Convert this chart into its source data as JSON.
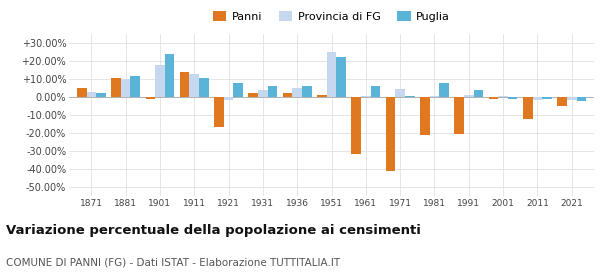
{
  "years": [
    1871,
    1881,
    1901,
    1911,
    1921,
    1931,
    1936,
    1951,
    1961,
    1971,
    1981,
    1991,
    2001,
    2011,
    2021
  ],
  "panni": [
    5.0,
    10.5,
    -1.0,
    13.5,
    -16.5,
    2.0,
    2.0,
    1.0,
    -31.5,
    -41.0,
    -21.0,
    -20.5,
    -1.5,
    -12.5,
    -5.0
  ],
  "provincia_fg": [
    2.5,
    10.0,
    17.5,
    12.5,
    -2.0,
    3.5,
    5.0,
    25.0,
    0.5,
    4.5,
    0.5,
    1.0,
    0.5,
    -2.0,
    -2.0
  ],
  "puglia": [
    2.0,
    11.5,
    23.5,
    10.5,
    7.5,
    6.0,
    6.0,
    22.0,
    6.0,
    0.5,
    7.5,
    3.5,
    -1.5,
    -1.5,
    -2.5
  ],
  "color_panni": "#e07820",
  "color_provincia": "#c5d8f0",
  "color_puglia": "#5ab4d8",
  "title": "Variazione percentuale della popolazione ai censimenti",
  "subtitle": "COMUNE DI PANNI (FG) - Dati ISTAT - Elaborazione TUTTITALIA.IT",
  "legend_labels": [
    "Panni",
    "Provincia di FG",
    "Puglia"
  ],
  "ylim": [
    -55,
    35
  ],
  "yticks": [
    -50,
    -40,
    -30,
    -20,
    -10,
    0,
    10,
    20,
    30
  ],
  "background_color": "#ffffff",
  "grid_color": "#e0e0e0"
}
